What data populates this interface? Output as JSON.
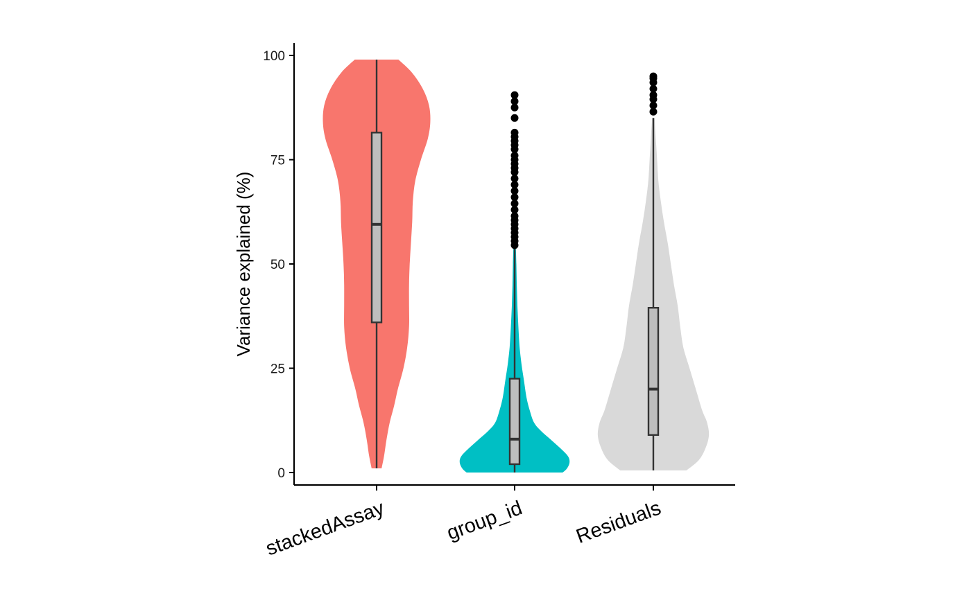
{
  "chart_data": {
    "type": "violin",
    "title": "",
    "xlabel": "",
    "ylabel": "Variance explained (%)",
    "ylim": [
      0,
      100
    ],
    "yticks": [
      0,
      25,
      50,
      75,
      100
    ],
    "ytick_labels": [
      "0",
      "25",
      "50",
      "75",
      "100"
    ],
    "grid": false,
    "legend": "none",
    "categories": [
      "stackedAssay",
      "group_id",
      "Residuals"
    ],
    "series": [
      {
        "category": "stackedAssay",
        "color": "#F8766D",
        "box": {
          "min": 1,
          "q1": 36,
          "median": 59.5,
          "q3": 81.5,
          "max": 99
        },
        "outliers": [],
        "density": [
          [
            1,
            0.08
          ],
          [
            4,
            0.12
          ],
          [
            8,
            0.16
          ],
          [
            12,
            0.21
          ],
          [
            16,
            0.28
          ],
          [
            20,
            0.34
          ],
          [
            25,
            0.43
          ],
          [
            30,
            0.49
          ],
          [
            35,
            0.52
          ],
          [
            40,
            0.52
          ],
          [
            45,
            0.52
          ],
          [
            50,
            0.53
          ],
          [
            55,
            0.55
          ],
          [
            60,
            0.57
          ],
          [
            65,
            0.58
          ],
          [
            70,
            0.62
          ],
          [
            75,
            0.71
          ],
          [
            80,
            0.82
          ],
          [
            84,
            0.86
          ],
          [
            88,
            0.84
          ],
          [
            92,
            0.74
          ],
          [
            96,
            0.56
          ],
          [
            99,
            0.35
          ]
        ]
      },
      {
        "category": "group_id",
        "color": "#00BFC4",
        "box": {
          "min": 0,
          "q1": 2,
          "median": 8,
          "q3": 22.5,
          "max": 54
        },
        "outliers": [
          54.5,
          55.5,
          56.5,
          57.5,
          58.5,
          59.5,
          60.5,
          61.5,
          63,
          64.5,
          66,
          67.5,
          69,
          70.5,
          72,
          73,
          74,
          75,
          76,
          77.5,
          78.5,
          79.5,
          80.5,
          81.5,
          85,
          87.5,
          89,
          90.5
        ],
        "density": [
          [
            0,
            0.77
          ],
          [
            1,
            0.84
          ],
          [
            2.5,
            0.88
          ],
          [
            4,
            0.85
          ],
          [
            6,
            0.72
          ],
          [
            8,
            0.57
          ],
          [
            10,
            0.42
          ],
          [
            12,
            0.31
          ],
          [
            15,
            0.24
          ],
          [
            18,
            0.19
          ],
          [
            22,
            0.15
          ],
          [
            26,
            0.11
          ],
          [
            30,
            0.08
          ],
          [
            35,
            0.06
          ],
          [
            40,
            0.045
          ],
          [
            45,
            0.035
          ],
          [
            50,
            0.028
          ],
          [
            54,
            0.02
          ]
        ]
      },
      {
        "category": "Residuals",
        "color": "#D9D9D9",
        "box": {
          "min": 0.5,
          "q1": 9,
          "median": 20,
          "q3": 39.5,
          "max": 85
        },
        "outliers": [
          86.5,
          88,
          89.5,
          90.5,
          92,
          93.5,
          94.5,
          95
        ],
        "density": [
          [
            0.5,
            0.53
          ],
          [
            3,
            0.73
          ],
          [
            6,
            0.84
          ],
          [
            9,
            0.89
          ],
          [
            12,
            0.86
          ],
          [
            15,
            0.78
          ],
          [
            20,
            0.68
          ],
          [
            25,
            0.58
          ],
          [
            30,
            0.48
          ],
          [
            35,
            0.43
          ],
          [
            40,
            0.39
          ],
          [
            45,
            0.33
          ],
          [
            50,
            0.28
          ],
          [
            55,
            0.23
          ],
          [
            60,
            0.17
          ],
          [
            65,
            0.12
          ],
          [
            70,
            0.08
          ],
          [
            75,
            0.06
          ],
          [
            80,
            0.04
          ],
          [
            85,
            0.02
          ]
        ]
      }
    ]
  }
}
